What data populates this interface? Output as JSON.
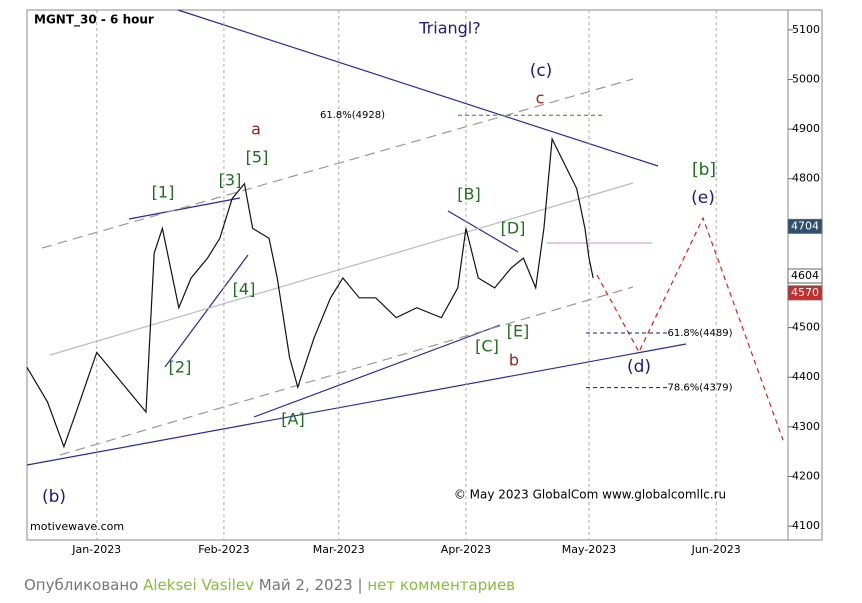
{
  "chart_data": {
    "type": "line",
    "title": "MGNT_30 - 6 hour",
    "series": [
      {
        "name": "MGNT_30",
        "color": "#111111",
        "x": [
          -17,
          -12,
          -8,
          -5,
          0,
          3,
          8,
          12,
          14,
          16,
          18,
          20,
          23,
          27,
          30,
          33,
          36,
          38,
          42,
          44,
          47,
          49,
          53,
          57,
          60,
          64,
          68,
          73,
          78,
          84,
          88,
          90,
          93,
          97,
          101,
          104,
          107,
          109,
          111,
          114,
          117,
          119,
          120,
          121
        ],
        "values": [
          4420,
          4350,
          4260,
          4330,
          4450,
          4420,
          4370,
          4330,
          4650,
          4700,
          4620,
          4540,
          4600,
          4640,
          4680,
          4760,
          4790,
          4700,
          4680,
          4600,
          4440,
          4380,
          4480,
          4560,
          4600,
          4560,
          4560,
          4520,
          4540,
          4520,
          4580,
          4700,
          4600,
          4580,
          4620,
          4640,
          4580,
          4700,
          4880,
          4830,
          4780,
          4700,
          4640,
          4600
        ]
      }
    ],
    "xlim": [
      -17,
      168.5
    ],
    "xticks": [
      {
        "value": 0,
        "label": "Jan-2023"
      },
      {
        "value": 31,
        "label": "Feb-2023"
      },
      {
        "value": 59,
        "label": "Mar-2023"
      },
      {
        "value": 90,
        "label": "Apr-2023"
      },
      {
        "value": 120,
        "label": "May-2023"
      },
      {
        "value": 151,
        "label": "Jun-2023"
      }
    ],
    "ylim": [
      4072,
      5140
    ],
    "yticks": [
      4100,
      4200,
      4300,
      4400,
      4500,
      4600,
      4700,
      4800,
      4900,
      5000,
      5100
    ],
    "fib_levels": [
      {
        "value": 4928,
        "label": "61.8%(4928)"
      },
      {
        "value": 4489,
        "label": "61.8%(4489)"
      },
      {
        "value": 4379,
        "label": "78.6%(4379)"
      }
    ],
    "price_markers": [
      4704,
      4604,
      4570
    ],
    "annotations": [
      "Triangl?",
      "(c)",
      "c",
      "a",
      "[5]",
      "[1]",
      "[3]",
      "[B]",
      "[D]",
      "[b]",
      "(e)",
      "[4]",
      "[2]",
      "[E]",
      "[C]",
      "b",
      "(d)",
      "[A]",
      "(b)"
    ],
    "watermark": "© May 2023 GlobalCom www.globalcomllc.ru",
    "source": "motivewave.com"
  },
  "footer": {
    "prefix": "Опубликовано",
    "author": "Aleksei Vasilev",
    "date": "Май 2, 2023",
    "separator": "|",
    "comments": "нет комментариев"
  }
}
